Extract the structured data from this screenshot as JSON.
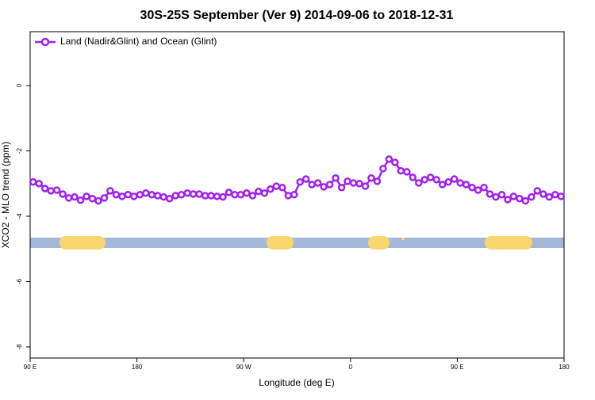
{
  "chart_data": {
    "type": "line",
    "title": "30S-25S September (Ver 9)   2014-09-06 to 2018-12-31",
    "x_label": "Longitude (deg E)",
    "y_label": "XCO2 - MLO trend (ppm)",
    "xlim": [
      90,
      540
    ],
    "xticks": [
      {
        "value": 90,
        "label": "90 E"
      },
      180,
      {
        "value": 270,
        "label": "90 W"
      },
      {
        "value": 360,
        "label": "0"
      },
      {
        "value": 450,
        "label": "90 E"
      },
      {
        "value": 540,
        "label": "180"
      }
    ],
    "ylim": [
      -8.34,
      1.65
    ],
    "yticks": [
      0,
      -2,
      -4,
      -6,
      -8
    ],
    "legend": "top-left",
    "x": [
      92.5,
      97.5,
      102.5,
      107.5,
      112.5,
      117.5,
      122.5,
      127.5,
      132.5,
      137.5,
      142.5,
      147.5,
      152.5,
      157.5,
      162.5,
      167.5,
      172.5,
      177.5,
      182.5,
      187.5,
      192.5,
      197.5,
      202.5,
      207.5,
      212.5,
      217.5,
      222.5,
      227.5,
      232.5,
      237.5,
      242.5,
      247.5,
      252.5,
      257.5,
      262.5,
      267.5,
      272.5,
      277.5,
      282.5,
      287.5,
      292.5,
      297.5,
      302.5,
      307.5,
      312.5,
      317.5,
      322.5,
      327.5,
      332.5,
      337.5,
      342.5,
      347.5,
      352.5,
      357.5,
      362.5,
      367.5,
      372.5,
      377.5,
      382.5,
      387.5,
      392.5,
      397.5,
      402.5,
      407.5,
      412.5,
      417.5,
      422.5,
      427.5,
      432.5,
      437.5,
      442.5,
      447.5,
      452.5,
      457.5,
      462.5,
      467.5,
      472.5,
      477.5,
      482.5,
      487.5,
      492.5,
      497.5,
      502.5,
      507.5,
      512.5,
      517.5,
      522.5,
      527.5,
      532.5,
      537.5
    ],
    "series": [
      {
        "name": "Land (Nadir&Glint) and Ocean (Glint)",
        "color": "#a020f0",
        "values": [
          -2.95,
          -3.0,
          -3.15,
          -3.22,
          -3.2,
          -3.32,
          -3.44,
          -3.41,
          -3.51,
          -3.39,
          -3.46,
          -3.53,
          -3.44,
          -3.22,
          -3.34,
          -3.39,
          -3.34,
          -3.39,
          -3.34,
          -3.29,
          -3.34,
          -3.37,
          -3.41,
          -3.46,
          -3.37,
          -3.34,
          -3.29,
          -3.32,
          -3.32,
          -3.37,
          -3.37,
          -3.39,
          -3.41,
          -3.27,
          -3.34,
          -3.34,
          -3.29,
          -3.37,
          -3.24,
          -3.29,
          -3.17,
          -3.08,
          -3.12,
          -3.37,
          -3.34,
          -2.95,
          -2.86,
          -3.03,
          -2.98,
          -3.1,
          -3.03,
          -2.83,
          -3.12,
          -2.93,
          -2.98,
          -3.0,
          -3.08,
          -2.83,
          -2.93,
          -2.54,
          -2.25,
          -2.35,
          -2.61,
          -2.64,
          -2.81,
          -2.98,
          -2.88,
          -2.81,
          -2.88,
          -3.03,
          -2.95,
          -2.86,
          -2.98,
          -3.03,
          -3.12,
          -3.2,
          -3.12,
          -3.32,
          -3.41,
          -3.34,
          -3.49,
          -3.39,
          -3.46,
          -3.53,
          -3.41,
          -3.22,
          -3.32,
          -3.41,
          -3.34,
          -3.39
        ]
      }
    ]
  }
}
